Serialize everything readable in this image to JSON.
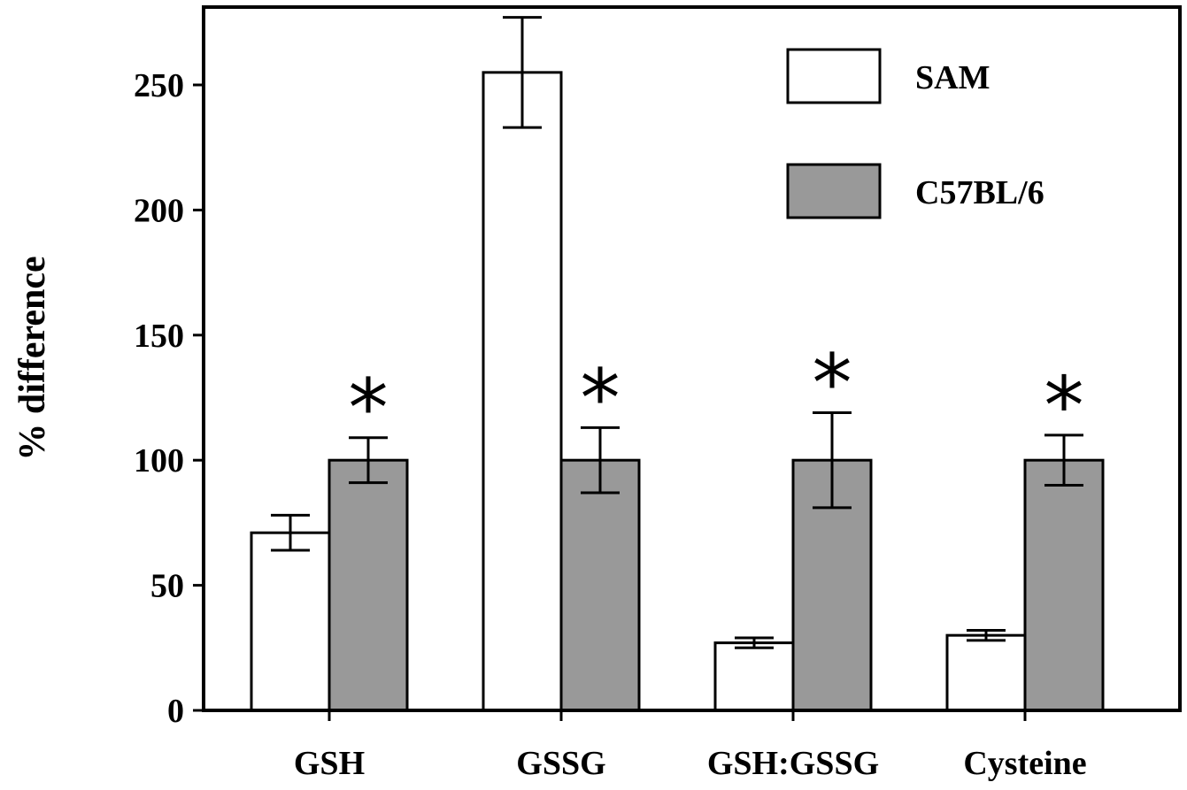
{
  "chart_data": {
    "type": "bar",
    "categories": [
      "GSH",
      "GSSG",
      "GSH:GSSG",
      "Cysteine"
    ],
    "series": [
      {
        "name": "SAM",
        "color": "#ffffff",
        "values": [
          71,
          255,
          27,
          30
        ],
        "error": [
          7,
          22,
          2,
          2
        ]
      },
      {
        "name": "C57BL/6",
        "color": "#999999",
        "values": [
          100,
          100,
          100,
          100
        ],
        "error": [
          9,
          13,
          19,
          10
        ]
      }
    ],
    "significance_marker": "*",
    "significant": [
      true,
      true,
      true,
      true
    ],
    "xlabel": "",
    "ylabel": "% difference",
    "ylim": [
      0,
      280
    ],
    "yticks": [
      0,
      50,
      100,
      150,
      200,
      250
    ],
    "grid": false,
    "legend_position": "top-right"
  }
}
